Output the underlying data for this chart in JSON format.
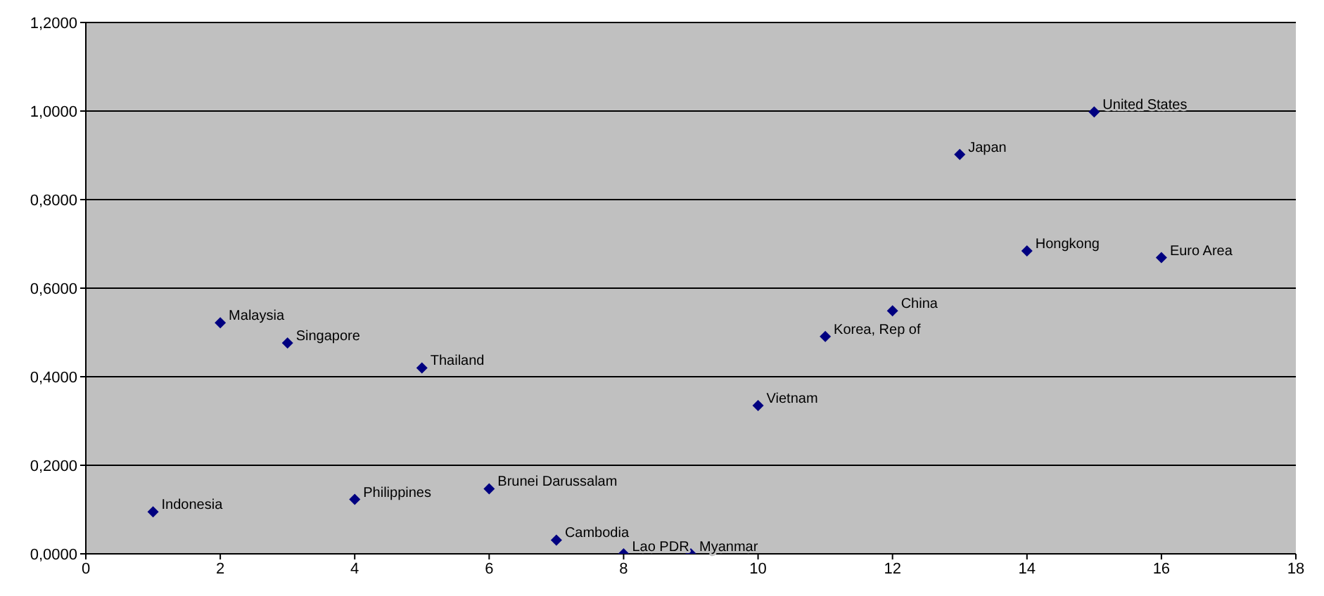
{
  "chart_data": {
    "type": "scatter",
    "marker": "diamond",
    "grid": "y",
    "x": [
      1,
      2,
      3,
      4,
      5,
      6,
      7,
      8,
      9,
      10,
      11,
      12,
      13,
      14,
      15,
      16
    ],
    "series": [
      {
        "color": "#000080",
        "values": [
          0.095,
          0.522,
          0.476,
          0.123,
          0.42,
          0.147,
          0.031,
          0.0,
          0.0,
          0.335,
          0.491,
          0.549,
          0.902,
          0.684,
          0.998,
          0.669
        ]
      }
    ],
    "xlim": [
      0,
      18
    ],
    "xticks": [
      0,
      2,
      4,
      6,
      8,
      10,
      12,
      14,
      16,
      18
    ],
    "ylim": [
      0,
      1.2
    ],
    "yticks": [
      {
        "value": 0,
        "label": "0,0000"
      },
      {
        "value": 0.2,
        "label": "0,2000"
      },
      {
        "value": 0.4,
        "label": "0,4000"
      },
      {
        "value": 0.6,
        "label": "0,6000"
      },
      {
        "value": 0.8,
        "label": "0,8000"
      },
      {
        "value": 1.0,
        "label": "1,0000"
      },
      {
        "value": 1.2,
        "label": "1,2000"
      }
    ],
    "annotations": [
      {
        "text": "Indonesia",
        "x": 1,
        "y": 0.095
      },
      {
        "text": "Malaysia",
        "x": 2,
        "y": 0.522
      },
      {
        "text": "Singapore",
        "x": 3,
        "y": 0.476
      },
      {
        "text": "Philippines",
        "x": 4,
        "y": 0.123
      },
      {
        "text": "Thailand",
        "x": 5,
        "y": 0.42
      },
      {
        "text": "Brunei Darussalam",
        "x": 6,
        "y": 0.147
      },
      {
        "text": "Cambodia",
        "x": 7,
        "y": 0.031
      },
      {
        "text": "Lao PDR",
        "x": 8,
        "y": 0.0
      },
      {
        "text": "Myanmar",
        "x": 9,
        "y": 0.0
      },
      {
        "text": "Vietnam",
        "x": 10,
        "y": 0.335
      },
      {
        "text": "Korea, Rep of",
        "x": 11,
        "y": 0.491
      },
      {
        "text": "China",
        "x": 12,
        "y": 0.549
      },
      {
        "text": "Japan",
        "x": 13,
        "y": 0.902
      },
      {
        "text": "Hongkong",
        "x": 14,
        "y": 0.684
      },
      {
        "text": "United States",
        "x": 15,
        "y": 0.998
      },
      {
        "text": "Euro Area",
        "x": 16,
        "y": 0.669
      }
    ]
  }
}
